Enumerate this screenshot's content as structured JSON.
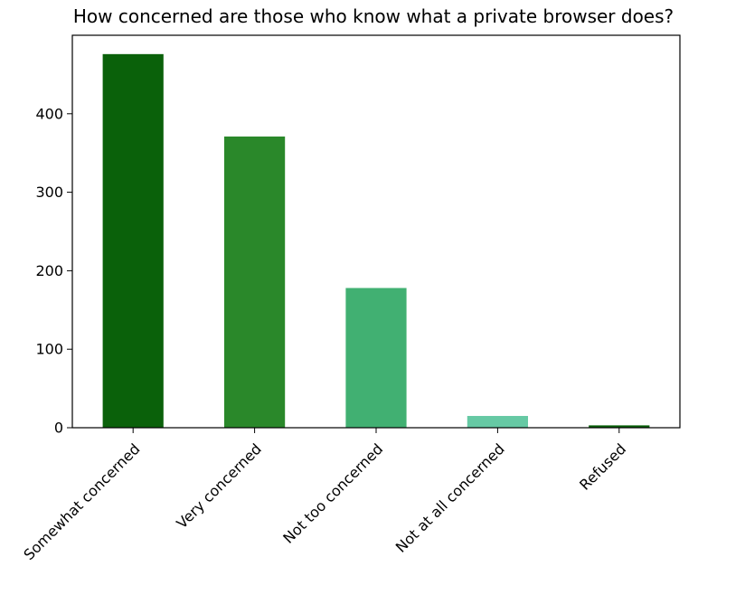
{
  "chart_data": {
    "type": "bar",
    "title": "How concerned are those who know what a private browser does?",
    "xlabel": "",
    "ylabel": "",
    "categories": [
      "Somewhat concerned",
      "Very concerned",
      "Not too concerned",
      "Not at all concerned",
      "Refused"
    ],
    "values": [
      476,
      371,
      178,
      15,
      3
    ],
    "colors": [
      "#0a610a",
      "#2a882a",
      "#41b072",
      "#66c9a4",
      "#0a610a"
    ],
    "ylim": [
      0,
      500
    ],
    "yticks": [
      0,
      100,
      200,
      300,
      400
    ],
    "ytick_labels": [
      "0",
      "100",
      "200",
      "300",
      "400"
    ],
    "grid": false,
    "legend": "none"
  }
}
